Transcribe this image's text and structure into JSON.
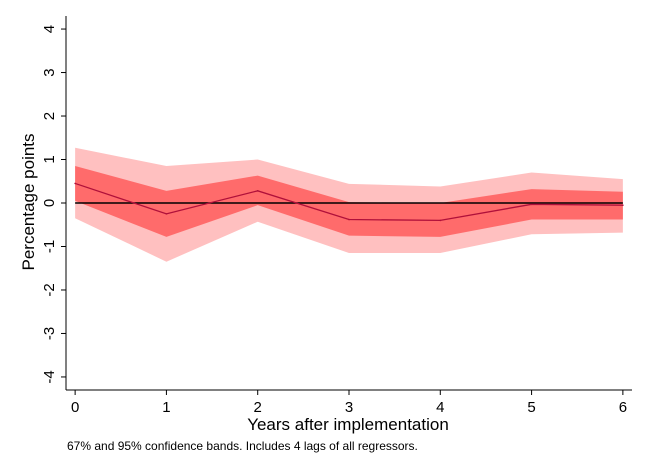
{
  "chart_data": {
    "type": "line",
    "xlabel": "Years after implementation",
    "ylabel": "Percentage points",
    "note": "67% and 95% confidence bands. Includes 4 lags of all regressors.",
    "x": [
      0,
      1,
      2,
      3,
      4,
      5,
      6
    ],
    "xticks": [
      0,
      1,
      2,
      3,
      4,
      5,
      6
    ],
    "yticks": [
      -4,
      -3,
      -2,
      -1,
      0,
      1,
      2,
      3,
      4
    ],
    "xlim": [
      -0.1,
      6.1
    ],
    "ylim": [
      -4.3,
      4.3
    ],
    "grid": false,
    "legend": "none",
    "zero_line": 0,
    "series": [
      {
        "values": [
          0.45,
          -0.25,
          0.28,
          -0.38,
          -0.4,
          -0.03,
          -0.05
        ]
      }
    ],
    "bands": [
      {
        "level": "95%",
        "lower": [
          -0.35,
          -1.35,
          -0.43,
          -1.15,
          -1.15,
          -0.72,
          -0.68
        ],
        "upper": [
          1.27,
          0.85,
          1.0,
          0.44,
          0.38,
          0.7,
          0.55
        ]
      },
      {
        "level": "67%",
        "lower": [
          0.05,
          -0.78,
          -0.05,
          -0.75,
          -0.78,
          -0.38,
          -0.38
        ],
        "upper": [
          0.85,
          0.28,
          0.63,
          0.02,
          0.0,
          0.32,
          0.26
        ]
      }
    ],
    "colors": {
      "band95": "#ffc0c0",
      "band67": "#ff6b6b",
      "estimate": "#b0103a",
      "zero_line": "#000000",
      "axis": "#000000"
    }
  }
}
